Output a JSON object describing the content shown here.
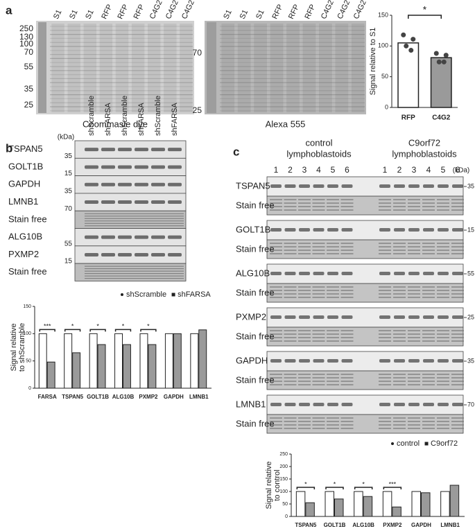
{
  "panel_a": {
    "label": "a",
    "gel1": {
      "lanes": [
        "S1",
        "S1",
        "S1",
        "RFP",
        "RFP",
        "RFP",
        "C4G2",
        "C4G2",
        "C4G2"
      ],
      "markers": [
        "250",
        "130",
        "100",
        "70",
        "55",
        "35",
        "25"
      ],
      "caption": "Coommasie dye"
    },
    "gel2": {
      "lanes": [
        "S1",
        "S1",
        "S1",
        "RFP",
        "RFP",
        "RFP",
        "C4G2",
        "C4G2",
        "C4G2"
      ],
      "markers": [
        "70",
        "25"
      ],
      "caption": "Alexa 555"
    }
  },
  "panel_b": {
    "label": "b",
    "kda": "(kDa)",
    "lanes": [
      "shScramble",
      "shFARSA",
      "shScramble",
      "shFARSA",
      "shScramble",
      "shFARSA"
    ],
    "rows": [
      {
        "name": "TSPAN5",
        "marker": "35"
      },
      {
        "name": "GOLT1B",
        "marker": "15"
      },
      {
        "name": "GAPDH",
        "marker": "35"
      },
      {
        "name": "LMNB1",
        "marker": "70"
      },
      {
        "name": "Stain free"
      },
      {
        "name": "ALG10B",
        "marker": "55"
      },
      {
        "name": "PXMP2",
        "marker": "15"
      },
      {
        "name": "Stain free"
      }
    ]
  },
  "panel_c": {
    "label": "c",
    "kda": "(kDa)",
    "groups": [
      {
        "title": [
          "control",
          "lymphoblastoids"
        ],
        "lanes": [
          "1",
          "2",
          "3",
          "4",
          "5",
          "6"
        ]
      },
      {
        "title": [
          "C9orf72",
          "lymphoblastoids"
        ],
        "lanes": [
          "1",
          "2",
          "3",
          "4",
          "5",
          "6"
        ]
      }
    ],
    "blocks": [
      {
        "protein": "TSPAN5",
        "stain": "Stain free",
        "marker": "35"
      },
      {
        "protein": "GOLT1B",
        "stain": "Stain free",
        "marker": "15"
      },
      {
        "protein": "ALG10B",
        "stain": "Stain free",
        "marker": "55"
      },
      {
        "protein": "PXMP2",
        "stain": "Stain free",
        "marker": "25"
      },
      {
        "protein": "GAPDH",
        "stain": "Stain free",
        "marker": "35"
      },
      {
        "protein": "LMNB1",
        "stain": "Stain free",
        "marker": "70"
      }
    ]
  },
  "chart_data": [
    {
      "type": "bar",
      "ylabel": "Signal relative to S1",
      "categories": [
        "RFP",
        "C4G2"
      ],
      "values": [
        105,
        81
      ],
      "colors": [
        "#ffffff",
        "#9a9a9a"
      ],
      "points": [
        [
          118,
          111,
          100,
          93
        ],
        [
          88,
          85,
          74,
          74
        ]
      ],
      "ylim": [
        0,
        150
      ],
      "yticks": [
        0,
        50,
        100,
        150
      ],
      "significance": "*"
    },
    {
      "type": "bar",
      "ylabel": [
        "Signal relative",
        "to shScramble"
      ],
      "categories": [
        "FARSA",
        "TSPAN5",
        "GOLT1B",
        "ALG10B",
        "PXMP2",
        "GAPDH",
        "LMNB1"
      ],
      "series": [
        {
          "name": "shScramble",
          "color": "#ffffff",
          "values": [
            100,
            100,
            100,
            100,
            100,
            100,
            100
          ]
        },
        {
          "name": "shFARSA",
          "color": "#9a9a9a",
          "values": [
            48,
            65,
            80,
            80,
            80,
            100,
            107
          ]
        }
      ],
      "ylim": [
        0,
        150
      ],
      "yticks": [
        0,
        50,
        100,
        150
      ],
      "significance": [
        "***",
        "*",
        "*",
        "*",
        "*",
        null,
        null
      ],
      "legend": "top"
    },
    {
      "type": "bar",
      "ylabel": [
        "Signal relative",
        "to control"
      ],
      "categories": [
        "TSPAN5",
        "GOLT1B",
        "ALG10B",
        "PXMP2",
        "GAPDH",
        "LMNB1"
      ],
      "series": [
        {
          "name": "control",
          "color": "#ffffff",
          "values": [
            100,
            100,
            100,
            100,
            100,
            100
          ]
        },
        {
          "name": "C9orf72",
          "color": "#9a9a9a",
          "values": [
            55,
            70,
            80,
            38,
            95,
            125
          ]
        }
      ],
      "ylim": [
        0,
        250
      ],
      "yticks": [
        0,
        50,
        100,
        150,
        200,
        250
      ],
      "significance": [
        "*",
        "*",
        "*",
        "***",
        null,
        null
      ],
      "legend": "top"
    }
  ]
}
